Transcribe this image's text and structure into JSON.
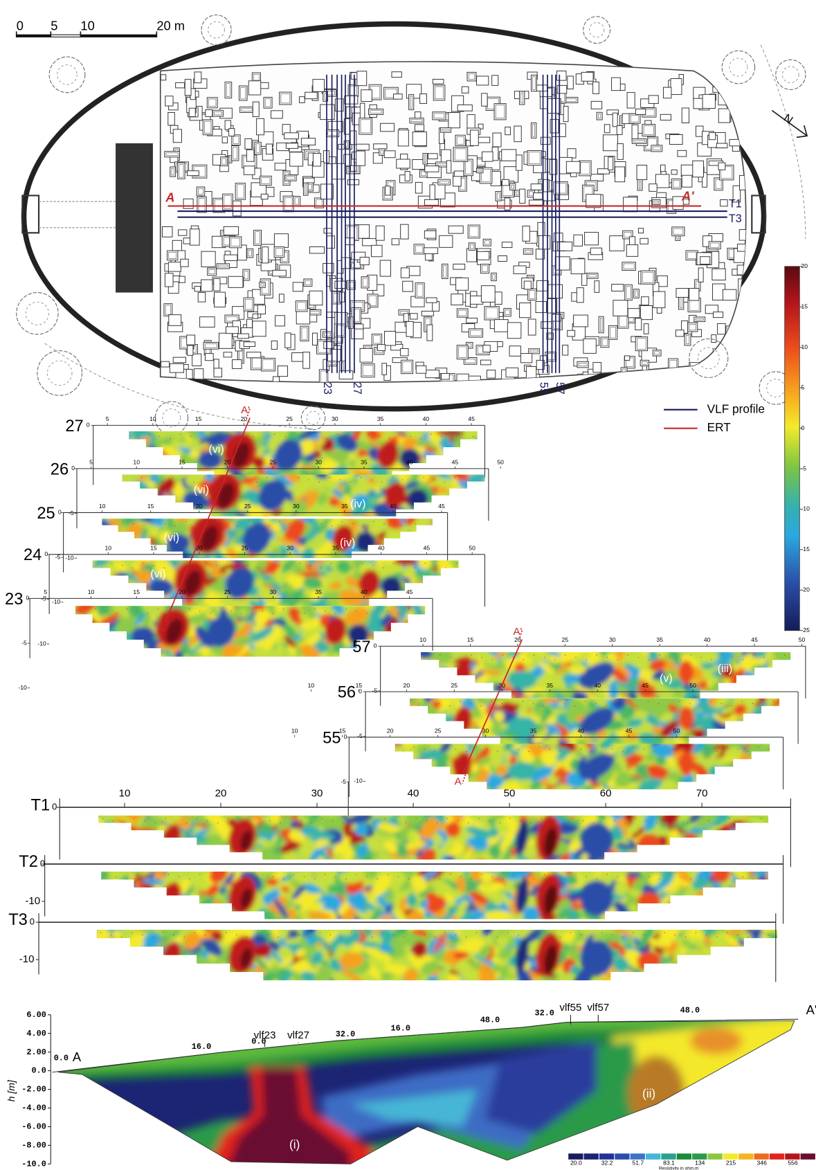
{
  "scale_bar": {
    "labels": [
      "0",
      "5",
      "10",
      "20 m"
    ]
  },
  "plan": {
    "profiles": [
      "23",
      "27",
      "55",
      "57"
    ],
    "traverses": [
      "T1",
      "T3"
    ],
    "ert_ends": [
      "A",
      "A'"
    ],
    "north": "N"
  },
  "legend": [
    {
      "label": "VLF profile",
      "color": "#1c2060"
    },
    {
      "label": "ERT",
      "color": "#c8282a"
    }
  ],
  "colorbar": {
    "range": [
      -25,
      20
    ],
    "ticks": [
      20,
      15,
      10,
      5,
      0,
      -5,
      -10,
      -15,
      -20,
      -25
    ]
  },
  "vlf_sections": [
    {
      "label": "27",
      "depth_ticks": [
        0
      ],
      "ticks": [
        5,
        10,
        15,
        20,
        25,
        30,
        35,
        40,
        45
      ],
      "annotations": [
        "(vi)"
      ]
    },
    {
      "label": "26",
      "depth_ticks": [
        0,
        -5,
        -10
      ],
      "ticks": [
        5,
        10,
        15,
        20,
        25,
        30,
        35,
        40,
        45,
        50
      ],
      "annotations": [
        "(vi)",
        "(iv)"
      ]
    },
    {
      "label": "25",
      "depth_ticks": [
        0,
        -5,
        -10
      ],
      "ticks": [
        10,
        15,
        20,
        25,
        30,
        35,
        40,
        45
      ],
      "annotations": [
        "(vi)",
        "(iv)"
      ]
    },
    {
      "label": "24",
      "depth_ticks": [
        0,
        -5,
        -10
      ],
      "ticks": [
        10,
        15,
        20,
        25,
        30,
        35,
        40,
        45,
        50
      ],
      "annotations": [
        "(vi)"
      ]
    },
    {
      "label": "23",
      "depth_ticks": [
        0,
        -5,
        -10
      ],
      "ticks": [
        5,
        10,
        15,
        20,
        25,
        30,
        35,
        40,
        45
      ],
      "annotations": []
    },
    {
      "label": "57",
      "depth_ticks": [
        0,
        -5
      ],
      "ticks": [
        10,
        15,
        20,
        25,
        30,
        35,
        40,
        45,
        50
      ],
      "annotations": [
        "(v)",
        "(iii)"
      ]
    },
    {
      "label": "56",
      "depth_ticks": [
        0,
        -5,
        -10
      ],
      "ticks": [
        10,
        15,
        20,
        25,
        30,
        35,
        40,
        45,
        50
      ],
      "annotations": []
    },
    {
      "label": "55",
      "depth_ticks": [
        0,
        -5,
        -10
      ],
      "ticks": [
        10,
        15,
        20,
        25,
        30,
        35,
        40,
        45,
        50
      ],
      "annotations": []
    }
  ],
  "vlf_ert_lines": [
    [
      "A",
      "A'"
    ],
    [
      "A",
      "A'"
    ]
  ],
  "traverse_sections": {
    "xticks": [
      10,
      20,
      30,
      40,
      50,
      60,
      70
    ],
    "sections": [
      {
        "label": "T1",
        "depth_ticks": [
          0
        ]
      },
      {
        "label": "T2",
        "depth_ticks": [
          0,
          -10
        ]
      },
      {
        "label": "T3",
        "depth_ticks": [
          0,
          -10
        ]
      }
    ]
  },
  "ert_section": {
    "yaxis_label": "h [m]",
    "yticks": [
      {
        "value": 6,
        "label": "6.00"
      },
      {
        "value": 4,
        "label": "4.00"
      },
      {
        "value": 2,
        "label": "2.00"
      },
      {
        "value": 0,
        "label": "0.0"
      },
      {
        "value": -2,
        "label": "-2.00"
      },
      {
        "value": -4,
        "label": "-4.00"
      },
      {
        "value": -6,
        "label": "-6.00"
      },
      {
        "value": -8,
        "label": "-8.00"
      },
      {
        "value": -10,
        "label": "-10.0"
      }
    ],
    "distance_labels": [
      "0.0",
      "16.0",
      "0.0",
      "32.0",
      "16.0",
      "48.0",
      "32.0",
      "48.0"
    ],
    "ends": [
      "A",
      "A'"
    ],
    "vlf_labels": [
      "vlf23",
      "vlf27",
      "vlf55",
      "vlf57"
    ],
    "annotations": [
      "(i)",
      "(ii)"
    ],
    "colorbar": {
      "labels": [
        "20.0",
        "32.2",
        "51.7",
        "83.1",
        "134",
        "215",
        "346",
        "556"
      ],
      "title": "Resistivity in ohm.m"
    }
  }
}
